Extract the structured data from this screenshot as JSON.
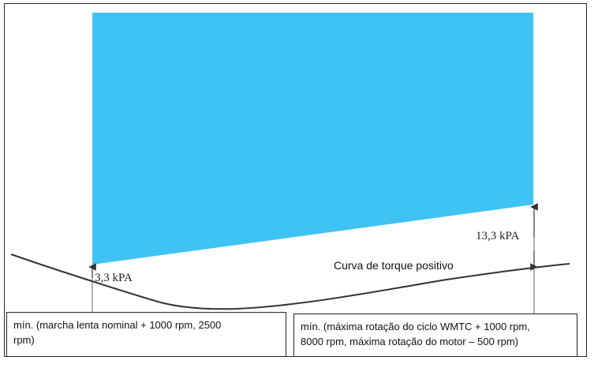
{
  "labels": {
    "left_pressure": "3,3 kPA",
    "right_pressure": "13,3 kPA",
    "curve": "Curva de torque positivo"
  },
  "notes": {
    "left": "mín. (marcha lenta nominal + 1000 rpm, 2500\nrpm)",
    "right": "mín. (máxima rotação do ciclo WMTC + 1000 rpm,\n8000 rpm, máxima rotação do motor – 500 rpm)"
  },
  "colors": {
    "region_fill": "#3FC3F3",
    "curve_stroke": "#333333",
    "line_stroke": "#555555"
  }
}
